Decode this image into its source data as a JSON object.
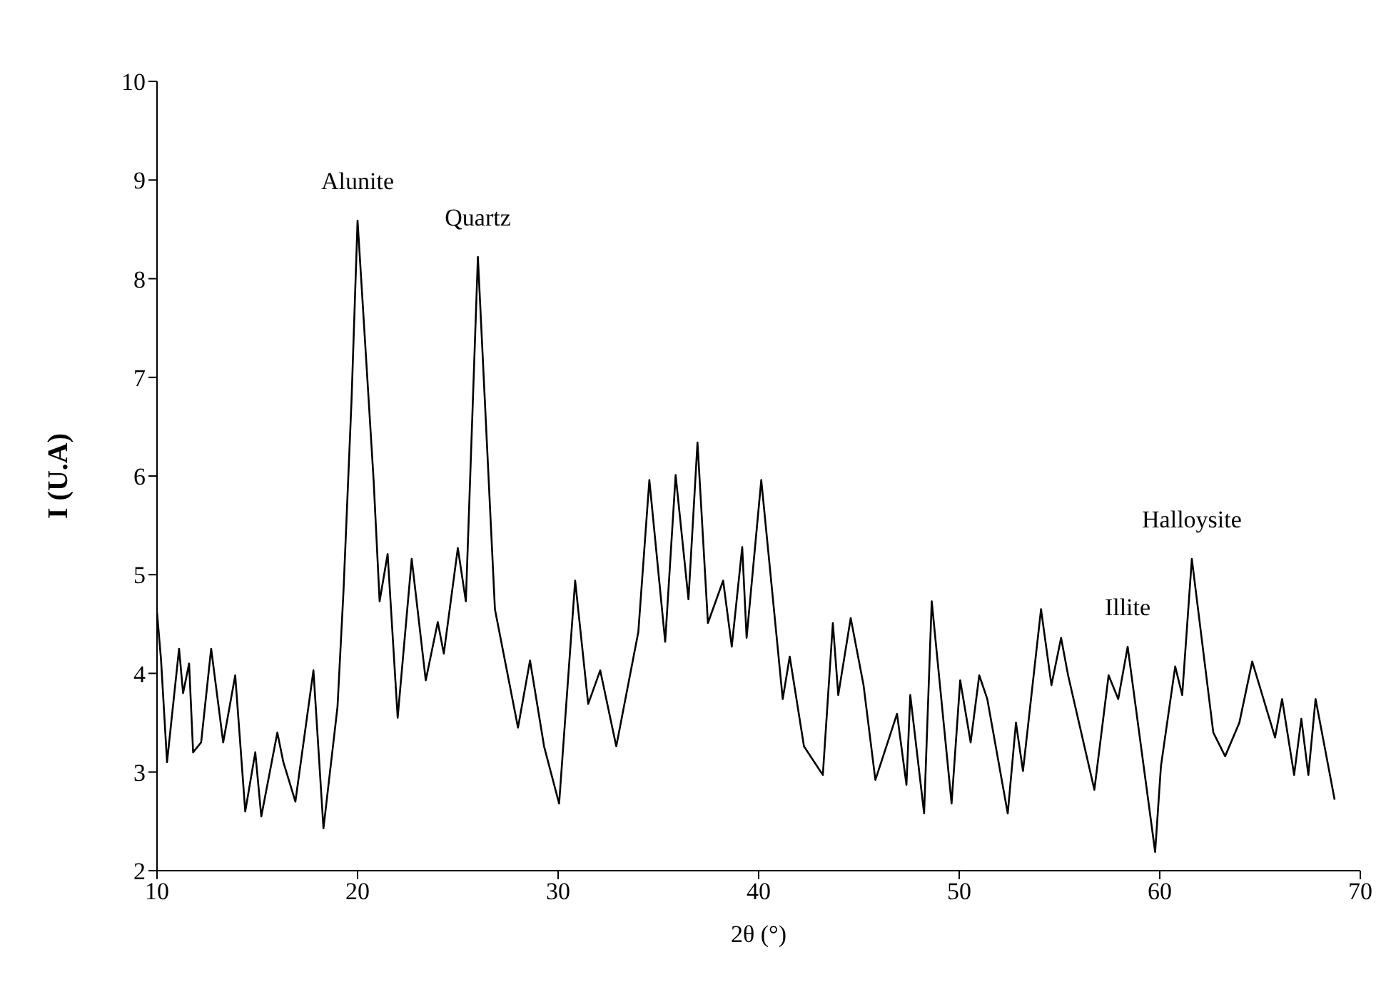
{
  "chart_data": {
    "type": "line",
    "xlabel": "2θ (°)",
    "ylabel": "I (U.A)",
    "x": [
      10,
      10.2,
      10.5,
      11.1,
      11.3,
      11.6,
      11.8,
      12.2,
      12.7,
      13.3,
      13.9,
      14.4,
      14.9,
      15.2,
      16.0,
      16.3,
      16.9,
      17.8,
      18.3,
      19.0,
      19.3,
      19.7,
      20.0,
      20.8,
      21.1,
      21.5,
      22.0,
      22.7,
      23.4,
      24.0,
      24.3,
      25.0,
      25.4,
      26.0,
      26.85,
      28.0,
      28.6,
      29.3,
      30.05,
      30.85,
      31.5,
      32.1,
      32.9,
      34.0,
      34.55,
      35.34,
      35.86,
      36.5,
      36.95,
      37.47,
      38.23,
      38.66,
      39.18,
      39.4,
      40.13,
      41.2,
      41.55,
      42.26,
      43.2,
      43.7,
      43.97,
      44.59,
      45.23,
      45.82,
      46.9,
      47.37,
      47.56,
      48.25,
      48.63,
      49.62,
      50.05,
      50.57,
      51.0,
      51.4,
      52.42,
      52.83,
      53.18,
      54.08,
      54.6,
      55.08,
      55.43,
      56.74,
      57.45,
      57.93,
      58.4,
      59.77,
      60.06,
      60.77,
      61.12,
      61.6,
      62.67,
      63.26,
      63.97,
      64.61,
      65.75,
      66.1,
      66.7,
      67.06,
      67.41,
      67.77,
      68.72
    ],
    "series": [
      {
        "color": "#000000",
        "values": [
          4.62,
          4.14,
          3.1,
          4.25,
          3.8,
          4.1,
          3.2,
          3.3,
          4.25,
          3.3,
          3.98,
          2.6,
          3.2,
          2.55,
          3.4,
          3.1,
          2.7,
          4.03,
          2.43,
          3.66,
          4.84,
          6.77,
          8.59,
          5.96,
          4.73,
          5.21,
          3.55,
          5.16,
          3.93,
          4.52,
          4.2,
          5.27,
          4.73,
          8.22,
          4.65,
          3.45,
          4.13,
          3.26,
          2.68,
          4.94,
          3.69,
          4.03,
          3.26,
          4.42,
          5.96,
          4.32,
          6.01,
          4.75,
          6.34,
          4.51,
          4.94,
          4.27,
          5.28,
          4.36,
          5.96,
          3.74,
          4.17,
          3.26,
          2.97,
          4.51,
          3.78,
          4.56,
          3.88,
          2.92,
          3.59,
          2.87,
          3.78,
          2.58,
          4.73,
          2.68,
          3.93,
          3.3,
          3.98,
          3.74,
          2.58,
          3.5,
          3.01,
          4.65,
          3.88,
          4.36,
          3.98,
          2.82,
          3.98,
          3.74,
          4.27,
          2.19,
          3.06,
          4.07,
          3.78,
          5.16,
          3.4,
          3.16,
          3.5,
          4.12,
          3.35,
          3.74,
          2.97,
          3.54,
          2.97,
          3.74,
          2.72
        ]
      }
    ],
    "xlim": [
      10,
      70
    ],
    "xticks": [
      10,
      20,
      30,
      40,
      50,
      60,
      70
    ],
    "ylim": [
      2,
      10
    ],
    "yticks": [
      2,
      3,
      4,
      5,
      6,
      7,
      8,
      9,
      10
    ],
    "grid": false,
    "legend": false,
    "marker": "none",
    "line_style": "solid",
    "annotations": [
      {
        "text": "Alunite",
        "x": 20,
        "y": 8.59
      },
      {
        "text": "Quartz",
        "x": 26,
        "y": 8.22
      },
      {
        "text": "Illite",
        "x": 58.4,
        "y": 4.27
      },
      {
        "text": "Halloysite",
        "x": 61.6,
        "y": 5.16
      }
    ]
  }
}
